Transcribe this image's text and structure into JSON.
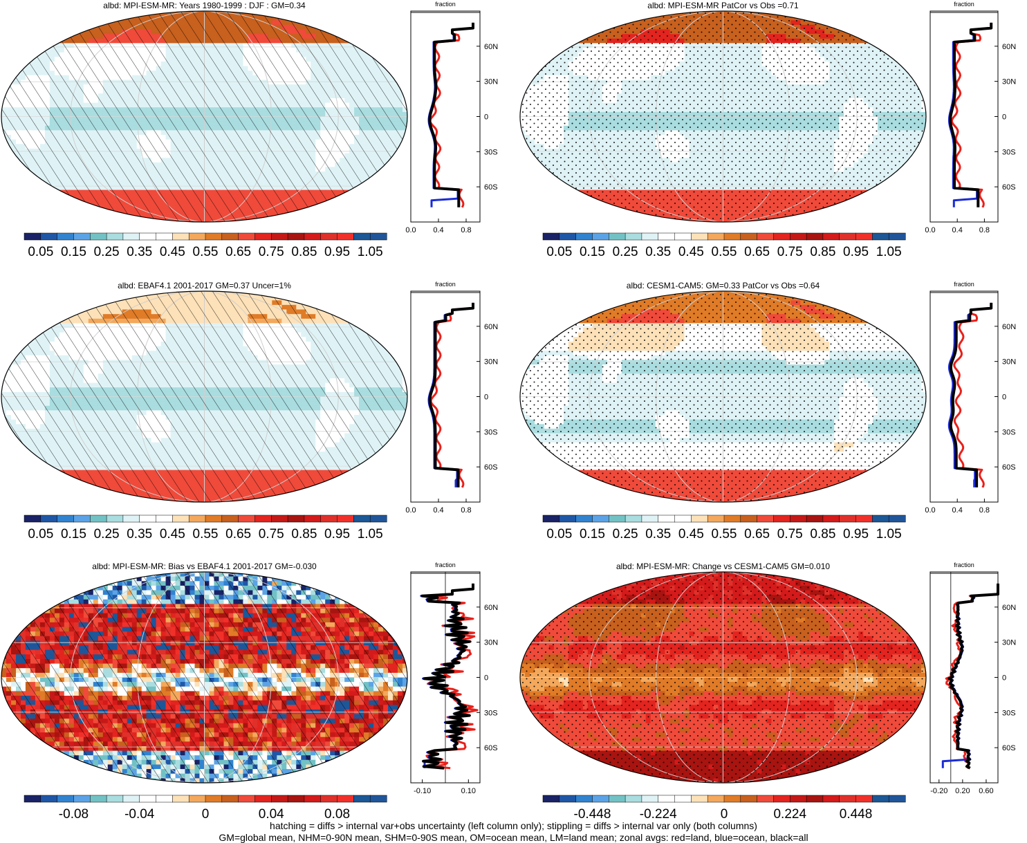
{
  "panels": [
    {
      "title": "albd: MPI-ESM-MR: Years 1980-1999 : DJF : GM=0.34",
      "colorbar": "abs",
      "pattern": "hatch",
      "fields": {
        "base": 0.33,
        "eq": -0.07,
        "sub": 0.02,
        "arct": 0.29,
        "ant": 0.35,
        "land": 0.05
      },
      "zonal_xlim": [
        0.0,
        1.0
      ],
      "zonal_xticks": [
        "0.0",
        "0.4",
        "0.8"
      ],
      "zonal_spike": 0.0,
      "zonal_tail_ocean": 0.2
    },
    {
      "title": "albd: MPI-ESM-MR PatCor vs Obs =0.71",
      "colorbar": "abs",
      "pattern": "stipple",
      "fields": {
        "base": 0.34,
        "eq": -0.06,
        "sub": 0.01,
        "arct": 0.3,
        "ant": 0.35,
        "land": 0.07
      },
      "zonal_xlim": [
        0.0,
        1.0
      ],
      "zonal_xticks": [
        "0.0",
        "0.4",
        "0.8"
      ],
      "zonal_spike": 0.0,
      "zonal_tail_ocean": 0.25
    },
    {
      "title": "albd: EBAF4.1 2001-2017 GM=0.37 Uncer=1%",
      "colorbar": "abs",
      "pattern": "hatch",
      "fields": {
        "base": 0.34,
        "eq": -0.08,
        "sub": 0.0,
        "arct": 0.15,
        "ant": 0.33,
        "land": 0.06
      },
      "zonal_xlim": [
        0.0,
        1.0
      ],
      "zonal_xticks": [
        "0.0",
        "0.4",
        "0.8"
      ],
      "zonal_spike": 0.0,
      "zonal_tail_ocean": 0.55
    },
    {
      "title": "albd: CESM1-CAM5: GM=0.33 PatCor vs Obs =0.64",
      "colorbar": "abs",
      "pattern": "stipple",
      "fields": {
        "base": 0.36,
        "eq": -0.05,
        "sub": -0.08,
        "arct": 0.2,
        "ant": 0.3,
        "land": 0.1
      },
      "zonal_xlim": [
        0.0,
        1.0
      ],
      "zonal_xticks": [
        "0.0",
        "0.4",
        "0.8"
      ],
      "zonal_spike": 0.0,
      "zonal_tail_ocean": 0.55
    },
    {
      "title": "albd: MPI-ESM-MR: Bias vs EBAF4.1 2001-2017 GM=-0.030",
      "colorbar": "bias",
      "pattern": "hatch",
      "fields": {
        "base": 0.04,
        "eq": -0.09,
        "sub": 0.03,
        "arct": -0.11,
        "ant": -0.1,
        "land": 0.02,
        "noise": 0.05
      },
      "zonal_xlim": [
        -0.15,
        0.15
      ],
      "zonal_xticks": [
        "-0.10",
        "0.10"
      ],
      "zonal_spike": -0.15,
      "zonal_tail_ocean": -0.12
    },
    {
      "title": "albd: MPI-ESM-MR: Change vs CESM1-CAM5 GM=0.010",
      "colorbar": "change",
      "pattern": "stipple",
      "fields": {
        "base": 0.13,
        "eq": -0.12,
        "sub": 0.07,
        "arct": 0.25,
        "ant": 0.18,
        "land": -0.05,
        "noise": 0.03
      },
      "zonal_xlim": [
        -0.35,
        0.8
      ],
      "zonal_xticks": [
        "-0.20",
        "0.20",
        "0.60"
      ],
      "zonal_spike": 0.55,
      "zonal_tail_ocean": -0.25
    }
  ],
  "colorbars": {
    "abs": {
      "labels": [
        "0.05",
        "0.15",
        "0.25",
        "0.35",
        "0.45",
        "0.55",
        "0.65",
        "0.75",
        "0.85",
        "0.95",
        "1.05"
      ],
      "min": 0.0,
      "max": 1.1
    },
    "bias": {
      "labels": [
        "-0.08",
        "-0.04",
        "0",
        "0.04",
        "0.08"
      ],
      "min": -0.11,
      "max": 0.11
    },
    "change": {
      "labels": [
        "-0.448",
        "-0.224",
        "0",
        "0.224",
        "0.448"
      ],
      "min": -0.616,
      "max": 0.616
    }
  },
  "colors": [
    "#1a2366",
    "#1f57a6",
    "#3183cf",
    "#5ba3e6",
    "#72c2c5",
    "#a9dde0",
    "#dff3f6",
    "#ffffff",
    "#ffffff",
    "#fde1b8",
    "#f3a85c",
    "#e07b27",
    "#c8601e",
    "#f04a3a",
    "#e3241f",
    "#c51917",
    "#a81410",
    "#d41a1a",
    "#e0302a",
    "#f2302a",
    "#1c5796",
    "#20559a"
  ],
  "lat_ticks": [
    "60N",
    "30N",
    "0",
    "30S",
    "60S"
  ],
  "zonal_header": "fraction",
  "footer": {
    "line1": "hatching = diffs > internal var+obs uncertainty (left column only); stippling = diffs > internal var only (both columns)",
    "line2": "GM=global mean, NHM=0-90N mean, SHM=0-90S mean, OM=ocean mean, LM=land mean; zonal avgs: red=land, blue=ocean, black=all"
  }
}
